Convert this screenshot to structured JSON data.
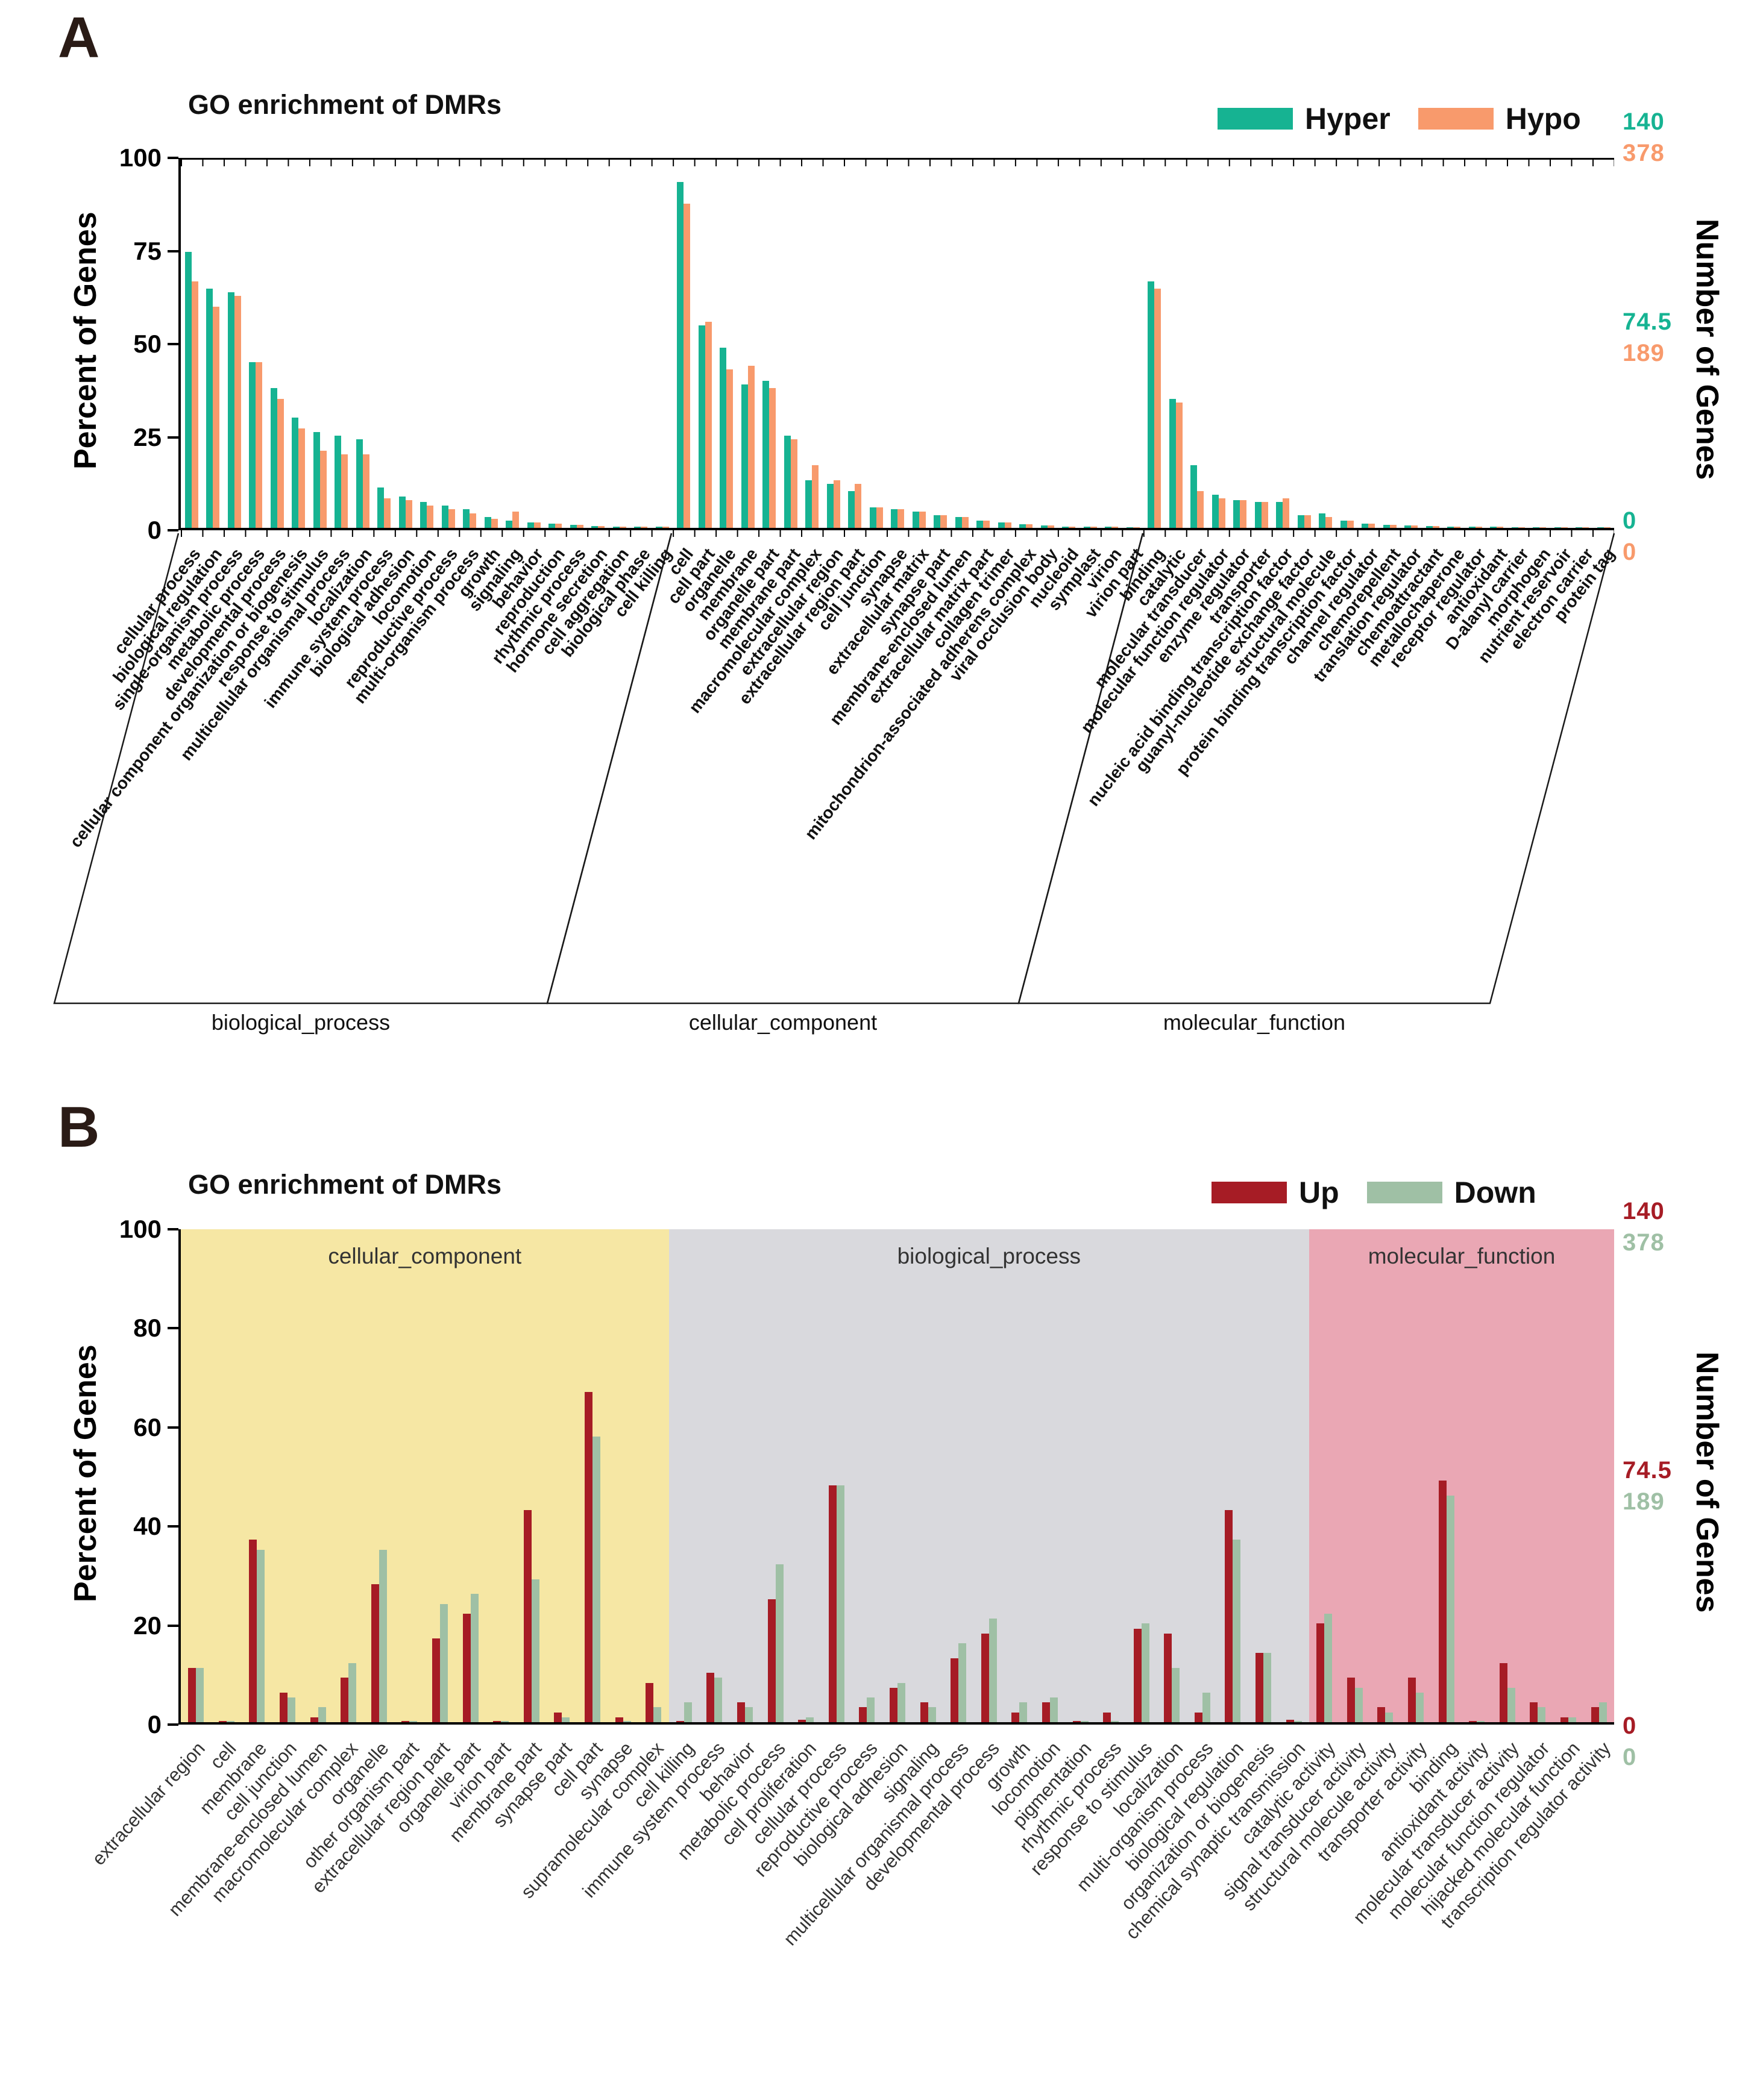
{
  "figure": {
    "panels": [
      {
        "letter": "A"
      },
      {
        "letter": "B"
      }
    ]
  },
  "chart_data": [
    {
      "type": "bar",
      "panel": "A",
      "title": "GO enrichment of DMRs",
      "ylabel": "Percent of Genes",
      "ylabel_right": "Number of Genes",
      "ylim": [
        0,
        100
      ],
      "yticks": [
        0,
        25,
        50,
        75,
        100
      ],
      "legend": [
        "Hyper",
        "Hypo"
      ],
      "right_axis": {
        "top": [
          "140",
          "378"
        ],
        "middle": [
          "74.5",
          "189"
        ],
        "bottom": [
          "0",
          "0"
        ]
      },
      "groups": [
        {
          "name": "biological_process",
          "start": 0,
          "end": 23
        },
        {
          "name": "cellular_component",
          "start": 23,
          "end": 45
        },
        {
          "name": "molecular_function",
          "start": 45,
          "end": 67
        }
      ],
      "categories": [
        "cellular process",
        "biological regulation",
        "single-organism process",
        "metabolic process",
        "developmental process",
        "cellular component organization or biogenesis",
        "response to stimulus",
        "multicellular organismal process",
        "localization",
        "immune system process",
        "biological adhesion",
        "locomotion",
        "reproductive process",
        "multi-organism process",
        "growth",
        "signaling",
        "behavior",
        "reproduction",
        "rhythmic process",
        "hormone secretion",
        "cell aggregation",
        "biological phase",
        "cell killing",
        "cell",
        "cell part",
        "organelle",
        "membrane",
        "organelle part",
        "membrane part",
        "macromolecular complex",
        "extracellular region",
        "extracellular region part",
        "cell junction",
        "synapse",
        "extracellular matrix",
        "synapse part",
        "membrane-enclosed lumen",
        "extracellular matrix part",
        "collagen trimer",
        "mitochondrion-associated adherens complex",
        "viral occlusion body",
        "nucleoid",
        "symplast",
        "virion",
        "virion part",
        "binding",
        "catalytic",
        "molecular transducer",
        "molecular function regulator",
        "enzyme regulator",
        "transporter",
        "nucleic acid binding transcription factor",
        "guanyl-nucleotide exchange factor",
        "structural molecule",
        "protein binding transcription factor",
        "channel regulator",
        "chemorepellent",
        "translation regulator",
        "chemoattractant",
        "metallochaperone",
        "receptor regulator",
        "antioxidant",
        "D-alanyl carrier",
        "morphogen",
        "nutrient reservoir",
        "electron carrier",
        "protein tag"
      ],
      "series": [
        {
          "name": "Hyper",
          "color": "#16b392",
          "values": [
            75,
            65,
            64,
            45,
            38,
            30,
            26,
            25,
            24,
            11,
            8.5,
            7,
            6,
            5,
            3,
            2,
            1.5,
            1.2,
            0.8,
            0.5,
            0.4,
            0.3,
            0.3,
            94,
            55,
            49,
            39,
            40,
            25,
            13,
            12,
            10,
            5.5,
            5,
            4.5,
            3.5,
            3,
            2,
            1.5,
            1,
            0.6,
            0.4,
            0.3,
            0.3,
            0.2,
            67,
            35,
            17,
            9,
            7.5,
            7,
            7,
            3.5,
            4,
            2,
            1.2,
            0.8,
            0.6,
            0.5,
            0.4,
            0.3,
            0.3,
            0.2,
            0.2,
            0.2,
            0.1,
            0.1
          ]
        },
        {
          "name": "Hypo",
          "color": "#f89a6c",
          "values": [
            67,
            60,
            63,
            45,
            35,
            27,
            21,
            20,
            20,
            8,
            7.5,
            6,
            5,
            4,
            2.5,
            4.5,
            1.5,
            1.2,
            0.8,
            0.5,
            0.3,
            0.3,
            0.3,
            88,
            56,
            43,
            44,
            38,
            24,
            17,
            13,
            12,
            5.5,
            5,
            4.5,
            3.5,
            3,
            2,
            1.5,
            1,
            0.6,
            0.4,
            0.3,
            0.3,
            0.2,
            65,
            34,
            10,
            8,
            7.5,
            7,
            8,
            3.5,
            3,
            2,
            1.2,
            0.8,
            0.6,
            0.5,
            0.4,
            0.3,
            0.3,
            0.2,
            0.2,
            0.2,
            0.1,
            0.1
          ]
        }
      ]
    },
    {
      "type": "bar",
      "panel": "B",
      "title": "GO enrichment of DMRs",
      "ylabel": "Percent of Genes",
      "ylabel_right": "Number of Genes",
      "ylim": [
        0,
        100
      ],
      "yticks": [
        0,
        20,
        40,
        60,
        80,
        100
      ],
      "legend": [
        "Up",
        "Down"
      ],
      "right_axis": {
        "top": [
          "140",
          "378"
        ],
        "middle": [
          "74.5",
          "189"
        ],
        "bottom": [
          "0",
          "0"
        ]
      },
      "groups": [
        {
          "name": "cellular_component",
          "start": 0,
          "end": 16,
          "color": "#f6e7a4"
        },
        {
          "name": "biological_process",
          "start": 16,
          "end": 37,
          "color": "#d9d9dd"
        },
        {
          "name": "molecular_function",
          "start": 37,
          "end": 47,
          "color": "#eaa7b4"
        }
      ],
      "categories": [
        "extracellular region",
        "cell",
        "membrane",
        "cell junction",
        "membrane-enclosed lumen",
        "macromolecular complex",
        "organelle",
        "other organism part",
        "extracellular region part",
        "organelle part",
        "virion part",
        "membrane part",
        "synapse part",
        "cell part",
        "synapse",
        "supramolecular complex",
        "cell killing",
        "immune system process",
        "behavior",
        "metabolic process",
        "cell proliferation",
        "cellular process",
        "reproductive process",
        "biological adhesion",
        "signaling",
        "multicellular organismal process",
        "developmental process",
        "growth",
        "locomotion",
        "pigmentation",
        "rhythmic process",
        "response to stimulus",
        "localization",
        "multi-organism process",
        "biological regulation",
        "organization or biogenesis",
        "chemical synaptic transmission",
        "catalytic activity",
        "signal transducer activity",
        "structural molecule activity",
        "transporter activity",
        "binding",
        "antioxidant activity",
        "molecular transducer activity",
        "molecular function regulator",
        "hijacked molecular function",
        "transcription regulator activity"
      ],
      "series": [
        {
          "name": "Up",
          "color": "#a61c25",
          "values": [
            11,
            0.3,
            37,
            6,
            1,
            9,
            28,
            0.2,
            17,
            22,
            0.2,
            43,
            2,
            67,
            1,
            8,
            0.3,
            10,
            4,
            25,
            0.5,
            48,
            3,
            7,
            4,
            13,
            18,
            2,
            4,
            0.2,
            2,
            19,
            18,
            2,
            43,
            14,
            0.5,
            20,
            9,
            3,
            9,
            49,
            0.2,
            12,
            4,
            1,
            3
          ]
        },
        {
          "name": "Down",
          "color": "#9fc0a5",
          "values": [
            11,
            0.3,
            35,
            5,
            3,
            12,
            35,
            0.2,
            24,
            26,
            0.2,
            29,
            1,
            58,
            0.3,
            3,
            4,
            9,
            3,
            32,
            1,
            48,
            5,
            8,
            3,
            16,
            21,
            4,
            5,
            0.2,
            0.3,
            20,
            11,
            6,
            37,
            14,
            0.2,
            22,
            7,
            2,
            6,
            46,
            0.2,
            7,
            3,
            1,
            4
          ]
        }
      ]
    }
  ]
}
